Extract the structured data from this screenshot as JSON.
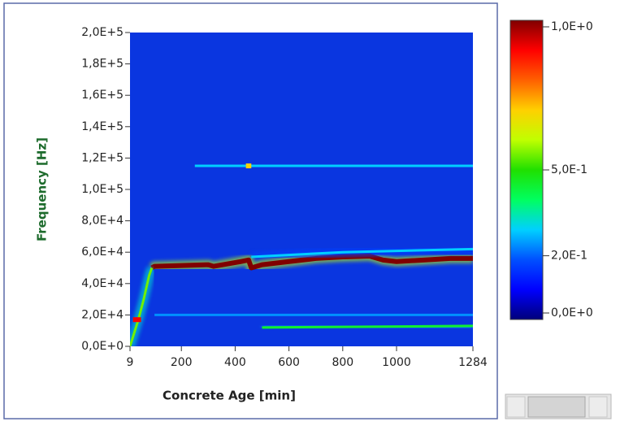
{
  "chart_data": {
    "type": "spectrogram",
    "xlabel": "Concrete Age [min]",
    "ylabel": "Frequency [Hz]",
    "xlim": [
      9,
      1284
    ],
    "xticks": [
      9,
      200,
      400,
      600,
      800,
      1000,
      1284
    ],
    "ylim": [
      0,
      200000
    ],
    "yticks": [
      {
        "value": 0,
        "label": "0,0E+0"
      },
      {
        "value": 20000,
        "label": "2,0E+4"
      },
      {
        "value": 40000,
        "label": "4,0E+4"
      },
      {
        "value": 60000,
        "label": "6,0E+4"
      },
      {
        "value": 80000,
        "label": "8,0E+4"
      },
      {
        "value": 100000,
        "label": "1,0E+5"
      },
      {
        "value": 120000,
        "label": "1,2E+5"
      },
      {
        "value": 140000,
        "label": "1,4E+5"
      },
      {
        "value": 160000,
        "label": "1,6E+5"
      },
      {
        "value": 180000,
        "label": "1,8E+5"
      },
      {
        "value": 200000,
        "label": "2,0E+5"
      }
    ],
    "clim": [
      0,
      1
    ],
    "cticks": [
      {
        "value": 0,
        "label": "0,0E+0"
      },
      {
        "value": 0.2,
        "label": "2,0E-1"
      },
      {
        "value": 0.5,
        "label": "5,0E-1"
      },
      {
        "value": 1,
        "label": "1,0E+0"
      }
    ],
    "colormap": [
      "#00007a",
      "#0000ff",
      "#0050ff",
      "#00d0ff",
      "#00ff60",
      "#20e000",
      "#c0ff00",
      "#ffd000",
      "#ff6000",
      "#ff0000",
      "#800000"
    ],
    "background_color": "#0a36e0",
    "series": [
      {
        "x": [
          90,
          100,
          200,
          300,
          320,
          420,
          450,
          460,
          500,
          600,
          700,
          800,
          900,
          950,
          1000,
          1100,
          1200,
          1284
        ],
        "values": [
          50000,
          51000,
          51500,
          52000,
          51000,
          54000,
          55000,
          50000,
          52000,
          54000,
          56000,
          57000,
          57500,
          55000,
          54000,
          55000,
          56000,
          56000
        ],
        "z": 1.0
      },
      {
        "x": [
          9,
          40,
          60,
          80,
          90
        ],
        "values": [
          0,
          17000,
          30000,
          45000,
          50000
        ],
        "z": 0.55
      },
      {
        "x": [
          20,
          50
        ],
        "values": [
          17000,
          17000
        ],
        "z": 0.9
      },
      {
        "x": [
          250,
          1284
        ],
        "values": [
          115000,
          115000
        ],
        "z": 0.3
      },
      {
        "x": [
          440,
          460
        ],
        "values": [
          115000,
          115000
        ],
        "z": 0.7
      },
      {
        "x": [
          500,
          1284
        ],
        "values": [
          12000,
          13000
        ],
        "z": 0.45
      },
      {
        "x": [
          100,
          1284
        ],
        "values": [
          20000,
          20000
        ],
        "z": 0.25
      },
      {
        "x": [
          460,
          800,
          1284
        ],
        "values": [
          57000,
          60000,
          62000
        ],
        "z": 0.3
      }
    ]
  }
}
